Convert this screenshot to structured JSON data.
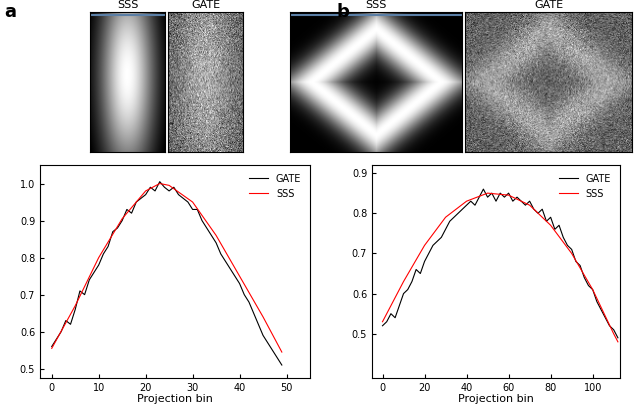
{
  "chart_data": [
    {
      "type": "line",
      "title": "a",
      "annotations": [
        "SSS",
        "GATE"
      ],
      "x_label": "Projection bin",
      "xlim": [
        -2.5,
        55
      ],
      "xticks": [
        0,
        10,
        20,
        30,
        40,
        50
      ],
      "ylim": [
        0.475,
        1.05
      ],
      "yticks": [
        0.5,
        0.6,
        0.7,
        0.8,
        0.9,
        1.0
      ],
      "legend": "upper right",
      "series": [
        {
          "name": "GATE",
          "color": "#000000",
          "x": [
            0,
            1,
            2,
            3,
            4,
            5,
            6,
            7,
            8,
            9,
            10,
            11,
            12,
            13,
            14,
            15,
            16,
            17,
            18,
            19,
            20,
            21,
            22,
            23,
            24,
            25,
            26,
            27,
            28,
            29,
            30,
            31,
            32,
            33,
            34,
            35,
            36,
            37,
            38,
            39,
            40,
            41,
            42,
            43,
            44,
            45,
            46,
            47,
            48,
            49
          ],
          "values": [
            0.56,
            0.58,
            0.6,
            0.63,
            0.62,
            0.66,
            0.71,
            0.7,
            0.74,
            0.76,
            0.78,
            0.81,
            0.83,
            0.87,
            0.88,
            0.9,
            0.93,
            0.92,
            0.95,
            0.96,
            0.97,
            0.99,
            0.98,
            1.005,
            0.99,
            0.98,
            0.99,
            0.97,
            0.96,
            0.95,
            0.93,
            0.93,
            0.9,
            0.88,
            0.86,
            0.84,
            0.81,
            0.79,
            0.77,
            0.75,
            0.73,
            0.7,
            0.68,
            0.65,
            0.62,
            0.59,
            0.57,
            0.55,
            0.53,
            0.51
          ]
        },
        {
          "name": "SSS",
          "color": "#ff0000",
          "x": [
            0,
            5,
            10,
            15,
            20,
            23,
            25,
            30,
            35,
            40,
            45,
            49
          ],
          "values": [
            0.555,
            0.67,
            0.8,
            0.905,
            0.98,
            1.0,
            0.995,
            0.95,
            0.86,
            0.75,
            0.64,
            0.545
          ]
        }
      ]
    },
    {
      "type": "line",
      "title": "b",
      "annotations": [
        "SSS",
        "GATE"
      ],
      "x_label": "Projection bin",
      "xlim": [
        -5,
        113
      ],
      "xticks": [
        0,
        20,
        40,
        60,
        80,
        100
      ],
      "ylim": [
        0.39,
        0.92
      ],
      "yticks": [
        0.5,
        0.6,
        0.7,
        0.8,
        0.9
      ],
      "legend": "upper right",
      "series": [
        {
          "name": "GATE",
          "color": "#000000",
          "x": [
            0,
            2,
            4,
            6,
            8,
            10,
            12,
            14,
            16,
            18,
            20,
            22,
            24,
            26,
            28,
            30,
            32,
            34,
            36,
            38,
            40,
            42,
            44,
            46,
            48,
            50,
            52,
            54,
            56,
            58,
            60,
            62,
            64,
            66,
            68,
            70,
            72,
            74,
            76,
            78,
            80,
            82,
            84,
            86,
            88,
            90,
            92,
            94,
            96,
            98,
            100,
            102,
            104,
            106,
            108,
            110,
            112
          ],
          "values": [
            0.52,
            0.53,
            0.55,
            0.54,
            0.57,
            0.6,
            0.61,
            0.63,
            0.66,
            0.65,
            0.68,
            0.7,
            0.72,
            0.73,
            0.74,
            0.76,
            0.78,
            0.79,
            0.8,
            0.81,
            0.82,
            0.83,
            0.82,
            0.84,
            0.86,
            0.84,
            0.85,
            0.83,
            0.85,
            0.84,
            0.85,
            0.83,
            0.84,
            0.83,
            0.82,
            0.83,
            0.81,
            0.8,
            0.81,
            0.78,
            0.79,
            0.76,
            0.77,
            0.74,
            0.72,
            0.71,
            0.68,
            0.67,
            0.64,
            0.62,
            0.61,
            0.58,
            0.56,
            0.54,
            0.52,
            0.51,
            0.49
          ]
        },
        {
          "name": "SSS",
          "color": "#ff0000",
          "x": [
            0,
            10,
            20,
            30,
            40,
            50,
            60,
            70,
            80,
            90,
            100,
            110,
            112
          ],
          "values": [
            0.53,
            0.63,
            0.72,
            0.79,
            0.83,
            0.85,
            0.845,
            0.82,
            0.77,
            0.7,
            0.61,
            0.5,
            0.48
          ]
        }
      ]
    }
  ]
}
